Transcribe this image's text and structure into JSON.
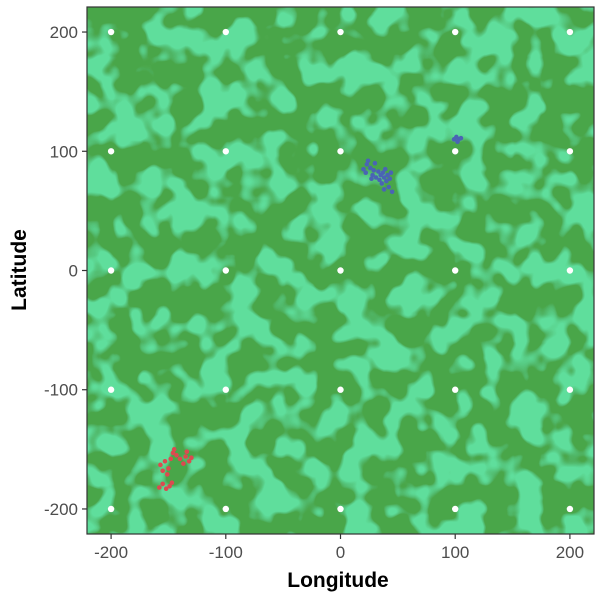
{
  "chart_data": {
    "type": "scatter",
    "title": "",
    "xlabel": "Longitude",
    "ylabel": "Latitude",
    "xlim": [
      -221,
      221
    ],
    "ylim": [
      -221,
      221
    ],
    "x_ticks": [
      -200,
      -100,
      0,
      100,
      200
    ],
    "y_ticks": [
      -200,
      -100,
      0,
      100,
      200
    ],
    "x_tick_labels": [
      "-200",
      "-100",
      "0",
      "100",
      "200"
    ],
    "y_tick_labels": [
      "-200",
      "-100",
      "0",
      "100",
      "200"
    ],
    "grid": true,
    "legend": "none",
    "colors": {
      "background_light": "#1dbb55",
      "background_dark": "#4aa64a",
      "grid_points": "#ffffff",
      "cluster_blue": "#4a64b4",
      "cluster_red": "#dc4a50"
    },
    "grid_points": {
      "x": [
        -200,
        -100,
        0,
        100,
        200
      ],
      "y": [
        -200,
        -100,
        0,
        100,
        200
      ]
    },
    "series": [
      {
        "color": "#4a64b4",
        "points": [
          [
            20,
            85
          ],
          [
            22,
            82
          ],
          [
            23,
            89
          ],
          [
            24,
            92
          ],
          [
            26,
            86
          ],
          [
            28,
            80
          ],
          [
            29,
            84
          ],
          [
            31,
            78
          ],
          [
            33,
            83
          ],
          [
            34,
            76
          ],
          [
            35,
            80
          ],
          [
            36,
            73
          ],
          [
            37,
            82
          ],
          [
            38,
            78
          ],
          [
            39,
            85
          ],
          [
            40,
            75
          ],
          [
            41,
            80
          ],
          [
            42,
            70
          ],
          [
            43,
            77
          ],
          [
            44,
            82
          ],
          [
            45,
            66
          ],
          [
            30,
            90
          ],
          [
            27,
            77
          ],
          [
            38,
            68
          ],
          [
            99,
            110
          ],
          [
            101,
            112
          ],
          [
            103,
            110
          ],
          [
            105,
            111
          ],
          [
            102,
            108
          ]
        ]
      },
      {
        "color": "#dc4a50",
        "points": [
          [
            -158,
            -182
          ],
          [
            -155,
            -179
          ],
          [
            -152,
            -183
          ],
          [
            -149,
            -181
          ],
          [
            -147,
            -178
          ],
          [
            -155,
            -168
          ],
          [
            -157,
            -163
          ],
          [
            -153,
            -160
          ],
          [
            -150,
            -166
          ],
          [
            -148,
            -158
          ],
          [
            -146,
            -153
          ],
          [
            -143,
            -155
          ],
          [
            -145,
            -150
          ],
          [
            -140,
            -158
          ],
          [
            -137,
            -162
          ],
          [
            -135,
            -156
          ],
          [
            -132,
            -160
          ],
          [
            -130,
            -157
          ],
          [
            -134,
            -152
          ],
          [
            -151,
            -171
          ]
        ]
      }
    ]
  }
}
